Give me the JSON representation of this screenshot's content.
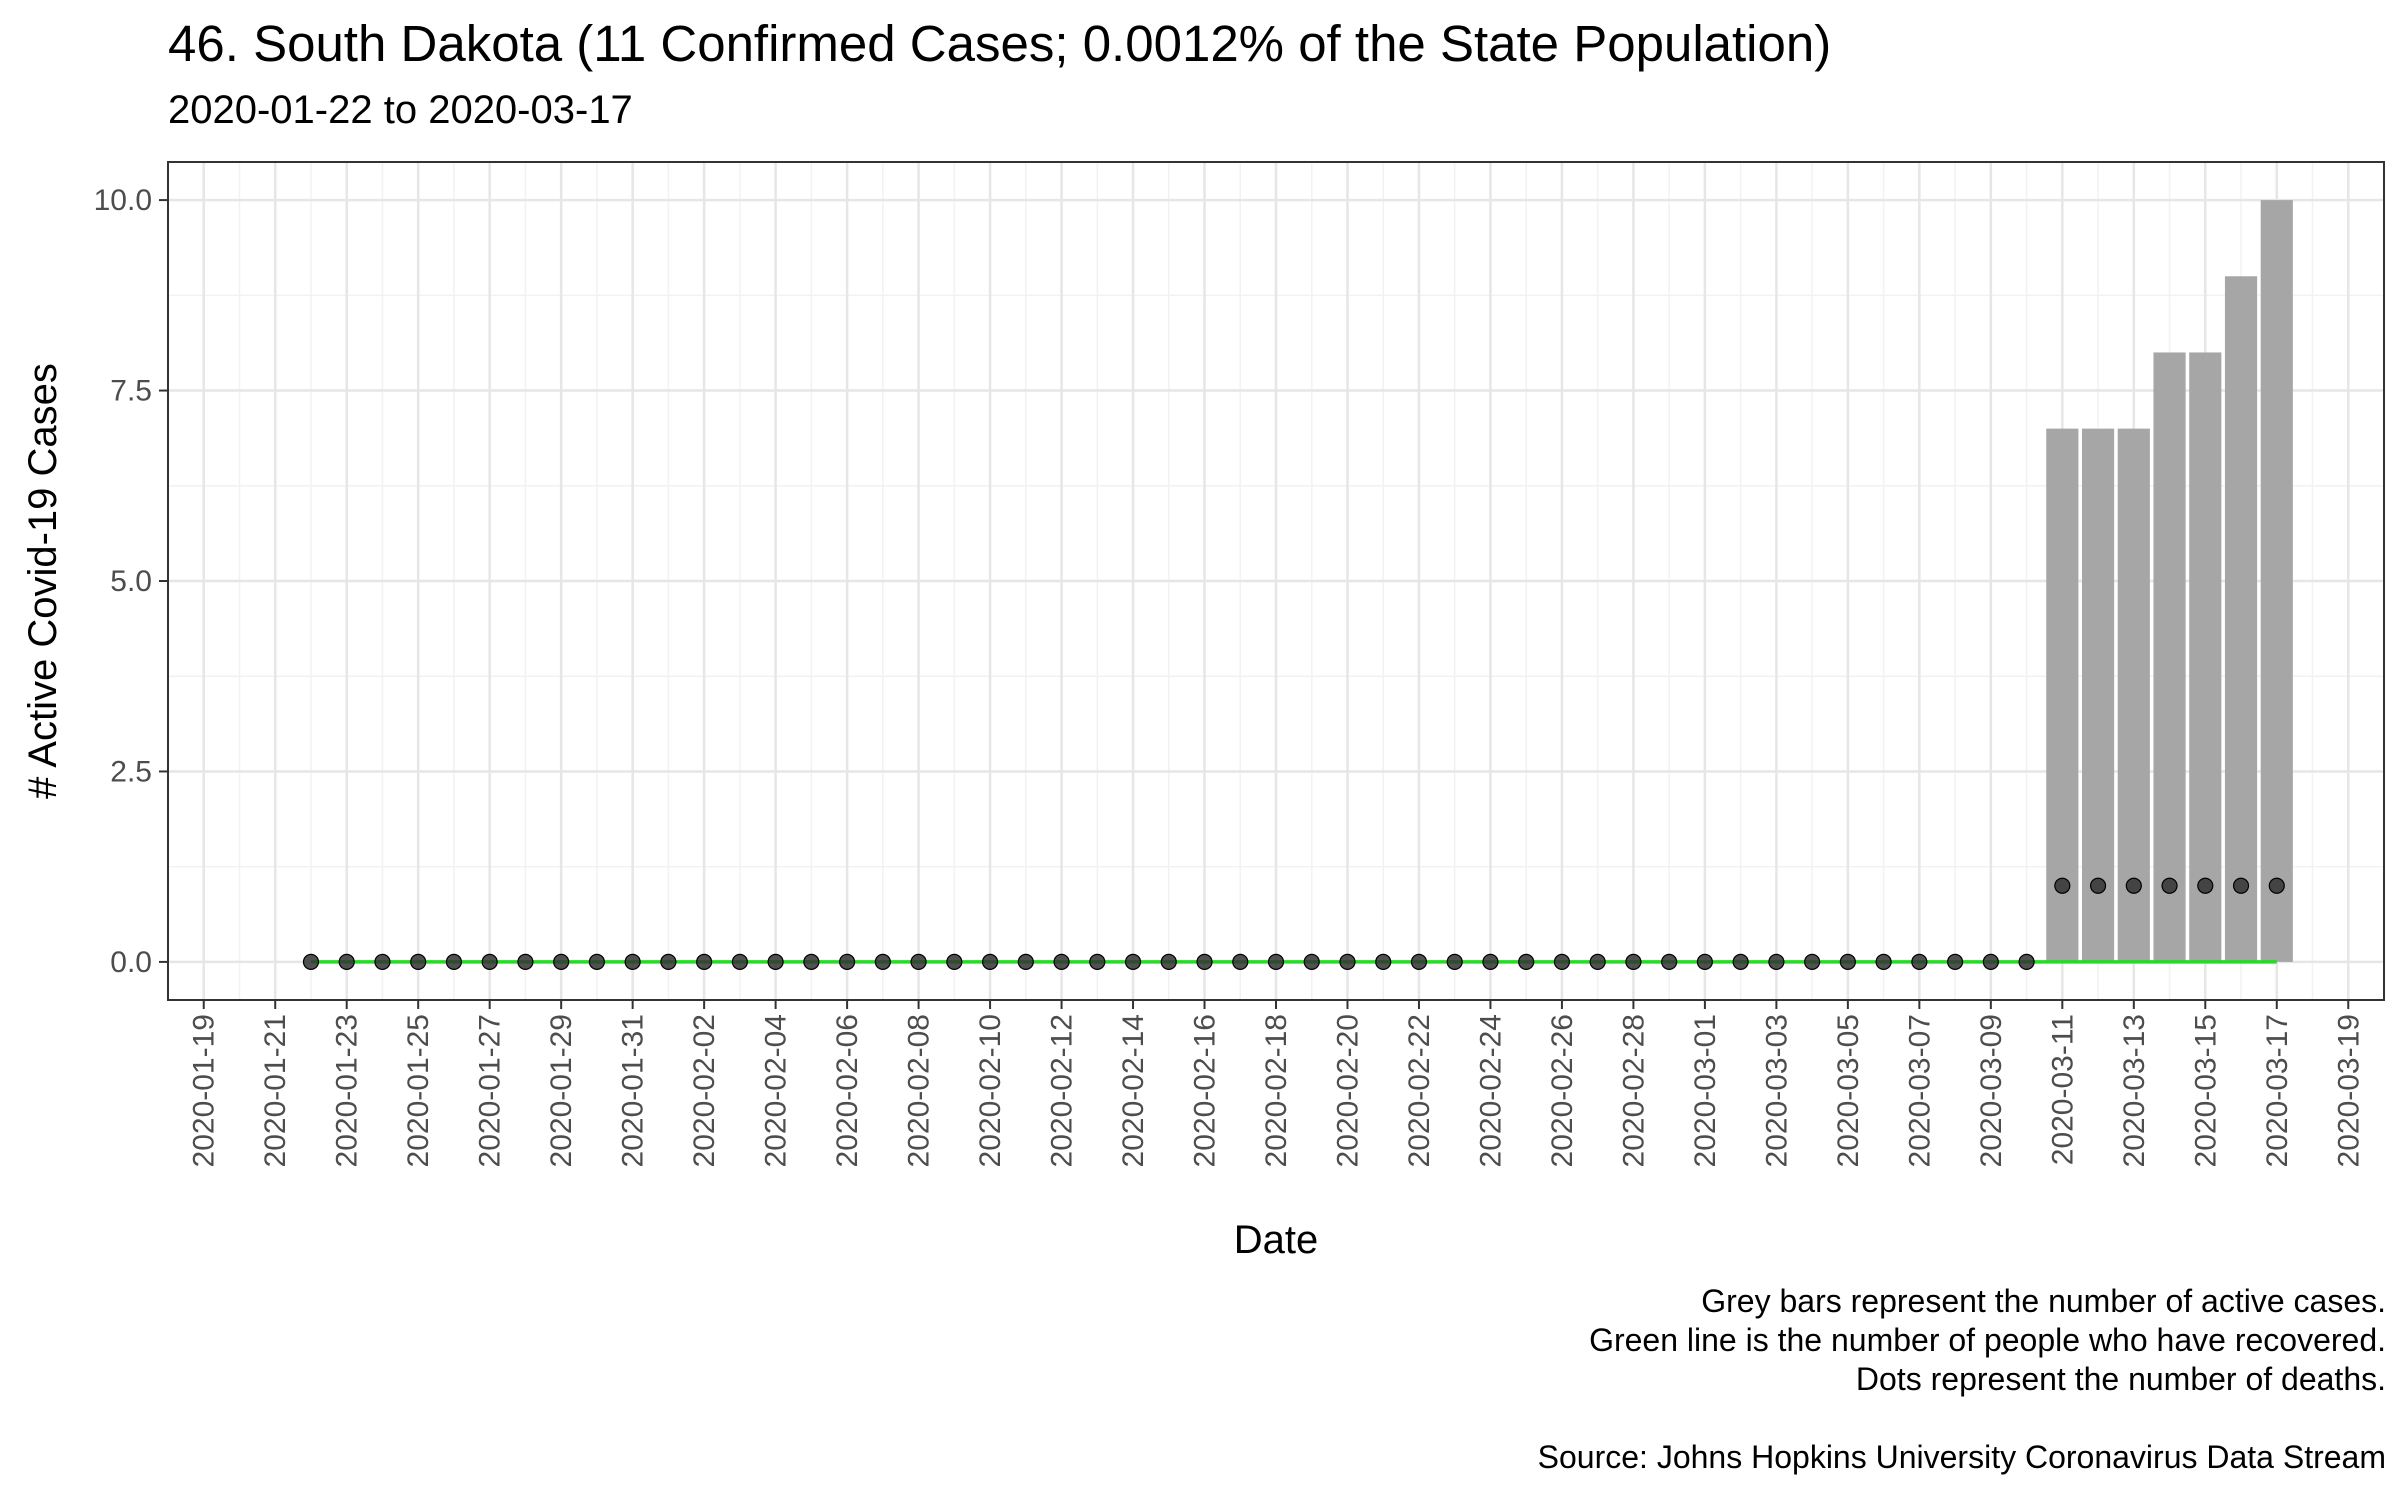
{
  "title": "46. South Dakota (11 Confirmed Cases; 0.0012% of the State Population)",
  "subtitle": "2020-01-22 to 2020-03-17",
  "captions": [
    "Grey bars represent the number of active cases.",
    "Green line is the number of people who have recovered.",
    "Dots represent the number of deaths.",
    "",
    "Source: Johns Hopkins University Coronavirus Data Stream"
  ],
  "colors": {
    "bar": "#a6a6a6",
    "recovered_line": "#22dd22",
    "death_dot": "#333333",
    "grid_major": "#e6e6e6",
    "grid_minor": "#f2f2f2",
    "axis_text": "#4d4d4d"
  },
  "chart_data": {
    "type": "bar",
    "title": "46. South Dakota (11 Confirmed Cases; 0.0012% of the State Population)",
    "subtitle": "2020-01-22 to 2020-03-17",
    "xlabel": "Date",
    "ylabel": "# Active Covid-19 Cases",
    "x_range": [
      "2020-01-18",
      "2020-03-20"
    ],
    "ylim": [
      -0.5,
      10.5
    ],
    "y_ticks": [
      0,
      2.5,
      5,
      7.5,
      10
    ],
    "y_tick_labels": [
      "0.0",
      "2.5",
      "5.0",
      "7.5",
      "10.0"
    ],
    "x_tick_labels": [
      "2020-01-19",
      "2020-01-21",
      "2020-01-23",
      "2020-01-25",
      "2020-01-27",
      "2020-01-29",
      "2020-01-31",
      "2020-02-02",
      "2020-02-04",
      "2020-02-06",
      "2020-02-08",
      "2020-02-10",
      "2020-02-12",
      "2020-02-14",
      "2020-02-16",
      "2020-02-18",
      "2020-02-20",
      "2020-02-22",
      "2020-02-24",
      "2020-02-26",
      "2020-02-28",
      "2020-03-01",
      "2020-03-03",
      "2020-03-05",
      "2020-03-07",
      "2020-03-09",
      "2020-03-11",
      "2020-03-13",
      "2020-03-15",
      "2020-03-17",
      "2020-03-19"
    ],
    "grid": true,
    "dates": [
      "2020-01-22",
      "2020-01-23",
      "2020-01-24",
      "2020-01-25",
      "2020-01-26",
      "2020-01-27",
      "2020-01-28",
      "2020-01-29",
      "2020-01-30",
      "2020-01-31",
      "2020-02-01",
      "2020-02-02",
      "2020-02-03",
      "2020-02-04",
      "2020-02-05",
      "2020-02-06",
      "2020-02-07",
      "2020-02-08",
      "2020-02-09",
      "2020-02-10",
      "2020-02-11",
      "2020-02-12",
      "2020-02-13",
      "2020-02-14",
      "2020-02-15",
      "2020-02-16",
      "2020-02-17",
      "2020-02-18",
      "2020-02-19",
      "2020-02-20",
      "2020-02-21",
      "2020-02-22",
      "2020-02-23",
      "2020-02-24",
      "2020-02-25",
      "2020-02-26",
      "2020-02-27",
      "2020-02-28",
      "2020-02-29",
      "2020-03-01",
      "2020-03-02",
      "2020-03-03",
      "2020-03-04",
      "2020-03-05",
      "2020-03-06",
      "2020-03-07",
      "2020-03-08",
      "2020-03-09",
      "2020-03-10",
      "2020-03-11",
      "2020-03-12",
      "2020-03-13",
      "2020-03-14",
      "2020-03-15",
      "2020-03-16",
      "2020-03-17"
    ],
    "series": [
      {
        "name": "Active cases",
        "mark": "bar",
        "values": [
          0,
          0,
          0,
          0,
          0,
          0,
          0,
          0,
          0,
          0,
          0,
          0,
          0,
          0,
          0,
          0,
          0,
          0,
          0,
          0,
          0,
          0,
          0,
          0,
          0,
          0,
          0,
          0,
          0,
          0,
          0,
          0,
          0,
          0,
          0,
          0,
          0,
          0,
          0,
          0,
          0,
          0,
          0,
          0,
          0,
          0,
          0,
          0,
          0,
          7,
          7,
          7,
          8,
          8,
          9,
          10
        ]
      },
      {
        "name": "Recovered",
        "mark": "line",
        "values": [
          0,
          0,
          0,
          0,
          0,
          0,
          0,
          0,
          0,
          0,
          0,
          0,
          0,
          0,
          0,
          0,
          0,
          0,
          0,
          0,
          0,
          0,
          0,
          0,
          0,
          0,
          0,
          0,
          0,
          0,
          0,
          0,
          0,
          0,
          0,
          0,
          0,
          0,
          0,
          0,
          0,
          0,
          0,
          0,
          0,
          0,
          0,
          0,
          0,
          0,
          0,
          0,
          0,
          0,
          0,
          0
        ]
      },
      {
        "name": "Deaths",
        "mark": "point",
        "values": [
          0,
          0,
          0,
          0,
          0,
          0,
          0,
          0,
          0,
          0,
          0,
          0,
          0,
          0,
          0,
          0,
          0,
          0,
          0,
          0,
          0,
          0,
          0,
          0,
          0,
          0,
          0,
          0,
          0,
          0,
          0,
          0,
          0,
          0,
          0,
          0,
          0,
          0,
          0,
          0,
          0,
          0,
          0,
          0,
          0,
          0,
          0,
          0,
          0,
          1,
          1,
          1,
          1,
          1,
          1,
          1
        ]
      }
    ]
  }
}
